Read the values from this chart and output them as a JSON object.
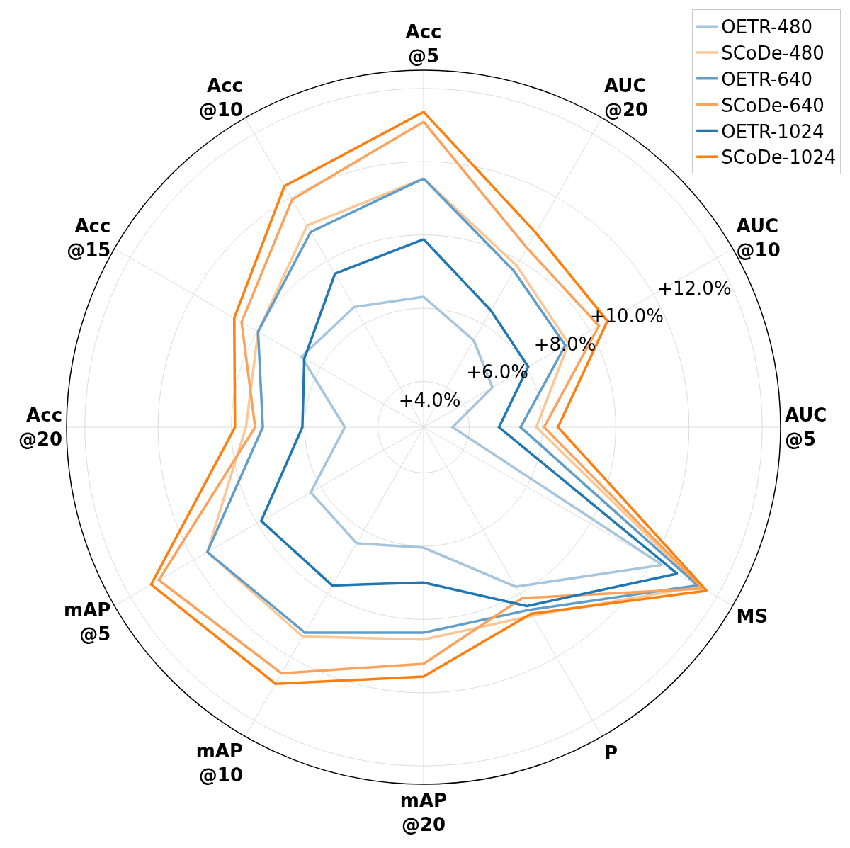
{
  "chart_data": {
    "type": "radar",
    "categories": [
      "Acc\n@5",
      "AUC\n@20",
      "AUC\n@10",
      "AUC\n@5",
      "MS",
      "P",
      "mAP\n@20",
      "mAP\n@10",
      "mAP\n@5",
      "Acc\n@20",
      "Acc\n@15",
      "Acc\n@10"
    ],
    "series": [
      {
        "name": "OETR-480",
        "color": "#a5c5df",
        "values": [
          6.31,
          5.49,
          4.92,
          3.54,
          10.27,
          7.78,
          6.04,
          6.41,
          6.31,
          4.9,
          6.6,
          6.54
        ]
      },
      {
        "name": "SCoDe-480",
        "color": "#fdc795",
        "values": [
          9.54,
          7.84,
          7.32,
          5.83,
          11.45,
          8.69,
          8.55,
          9.35,
          9.57,
          7.6,
          7.97,
          9.11
        ]
      },
      {
        "name": "OETR-640",
        "color": "#5f9dcb",
        "values": [
          9.54,
          7.68,
          7.22,
          5.4,
          11.39,
          8.51,
          8.36,
          9.23,
          9.57,
          7.14,
          7.97,
          8.91
        ]
      },
      {
        "name": "SCoDe-640",
        "color": "#fca25a",
        "values": [
          11.09,
          8.4,
          8.28,
          6.04,
          11.56,
          8.14,
          9.21,
          10.51,
          11.1,
          7.35,
          8.49,
          9.93
        ]
      },
      {
        "name": "OETR-1024",
        "color": "#1f77b4",
        "values": [
          7.88,
          6.43,
          6.05,
          4.81,
          10.75,
          8.39,
          6.99,
          7.74,
          7.87,
          6.06,
          6.51,
          7.59
        ]
      },
      {
        "name": "SCoDe-1024",
        "color": "#ff7f0e",
        "values": [
          11.36,
          8.88,
          8.55,
          6.42,
          11.68,
          8.63,
          9.56,
          10.84,
          11.34,
          7.9,
          8.72,
          10.35
        ]
      }
    ],
    "ylim": [
      2.75,
      12.5
    ],
    "yticks": [
      {
        "value": 4,
        "label": "+4.0%"
      },
      {
        "value": 6,
        "label": "+6.0%"
      },
      {
        "value": 8,
        "label": "+8.0%"
      },
      {
        "value": 10,
        "label": "+10.0%"
      },
      {
        "value": 12,
        "label": "+12.0%"
      }
    ],
    "grid": true,
    "legend": "top right",
    "marker": "none",
    "line_style": "solid"
  }
}
